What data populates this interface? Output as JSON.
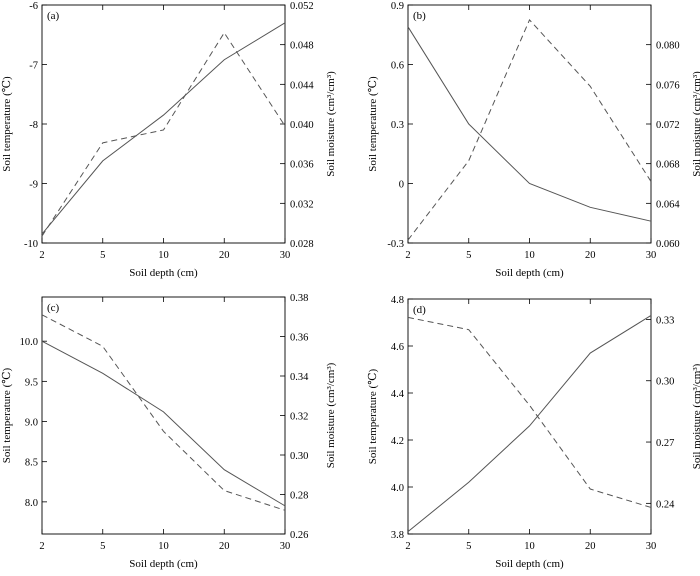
{
  "chart_data": [
    {
      "type": "line",
      "panel_label": "(a)",
      "xlabel": "Soil depth (cm)",
      "ylabel": "Soil temperature (℃)",
      "y2label": "Soil moisture (cm³/cm³)",
      "categories": [
        "2",
        "5",
        "10",
        "20",
        "30"
      ],
      "ylim": [
        -10,
        -6
      ],
      "y_ticks": [
        "-10",
        "-9",
        "-8",
        "-7",
        "-6"
      ],
      "y2lim": [
        0.028,
        0.052
      ],
      "y2_ticks": [
        "0.028",
        "0.032",
        "0.036",
        "0.040",
        "0.044",
        "0.048",
        "0.052"
      ],
      "series": [
        {
          "name": "Soil temperature",
          "axis": "left",
          "style": "solid",
          "values": [
            -9.85,
            -8.62,
            -7.85,
            -6.92,
            -6.3
          ]
        },
        {
          "name": "Soil moisture",
          "axis": "right",
          "style": "dashed",
          "values": [
            0.0287,
            0.0381,
            0.0394,
            0.0492,
            0.0398
          ]
        }
      ]
    },
    {
      "type": "line",
      "panel_label": "(b)",
      "xlabel": "Soil depth (cm)",
      "ylabel": "Soil temperature (℃)",
      "y2label": "Soil moisture (cm³/cm³)",
      "categories": [
        "2",
        "5",
        "10",
        "20",
        "30"
      ],
      "ylim": [
        -0.3,
        0.9
      ],
      "y_ticks": [
        "-0.3",
        "0",
        "0.3",
        "0.6",
        "0.9"
      ],
      "y2lim": [
        0.06,
        0.084
      ],
      "y2_ticks": [
        "0.060",
        "0.064",
        "0.068",
        "0.072",
        "0.076",
        "0.080"
      ],
      "series": [
        {
          "name": "Soil temperature",
          "axis": "left",
          "style": "solid",
          "values": [
            0.79,
            0.3,
            0.0,
            -0.12,
            -0.19
          ]
        },
        {
          "name": "Soil moisture",
          "axis": "right",
          "style": "dashed",
          "values": [
            0.0603,
            0.0683,
            0.0825,
            0.0758,
            0.0662
          ]
        }
      ]
    },
    {
      "type": "line",
      "panel_label": "(c)",
      "xlabel": "Soil depth (cm)",
      "ylabel": "Soil temperature (℃)",
      "y2label": "Soil moisture (cm³/cm³)",
      "categories": [
        "2",
        "5",
        "10",
        "20",
        "30"
      ],
      "ylim": [
        7.6,
        10.55
      ],
      "y_ticks": [
        "8.0",
        "8.5",
        "9.0",
        "9.5",
        "10.0"
      ],
      "y2lim": [
        0.26,
        0.38
      ],
      "y2_ticks": [
        "0.26",
        "0.28",
        "0.30",
        "0.32",
        "0.34",
        "0.36",
        "0.38"
      ],
      "series": [
        {
          "name": "Soil temperature",
          "axis": "left",
          "style": "solid",
          "values": [
            10.0,
            9.6,
            9.12,
            8.4,
            7.95
          ]
        },
        {
          "name": "Soil moisture",
          "axis": "right",
          "style": "dashed",
          "values": [
            0.371,
            0.355,
            0.312,
            0.282,
            0.272
          ]
        }
      ]
    },
    {
      "type": "line",
      "panel_label": "(d)",
      "xlabel": "Soil depth (cm)",
      "ylabel": "Soil temperature (℃)",
      "y2label": "Soil moisture (cm³/cm³)",
      "categories": [
        "2",
        "5",
        "10",
        "20",
        "30"
      ],
      "ylim": [
        3.8,
        4.8
      ],
      "y_ticks": [
        "3.8",
        "4.0",
        "4.2",
        "4.4",
        "4.6",
        "4.8"
      ],
      "y2lim": [
        0.225,
        0.34
      ],
      "y2_ticks": [
        "0.24",
        "0.27",
        "0.30",
        "0.33"
      ],
      "series": [
        {
          "name": "Soil temperature",
          "axis": "left",
          "style": "solid",
          "values": [
            3.81,
            4.02,
            4.26,
            4.57,
            4.73
          ]
        },
        {
          "name": "Soil moisture",
          "axis": "right",
          "style": "dashed",
          "values": [
            0.331,
            0.325,
            0.288,
            0.247,
            0.238
          ]
        }
      ]
    }
  ]
}
